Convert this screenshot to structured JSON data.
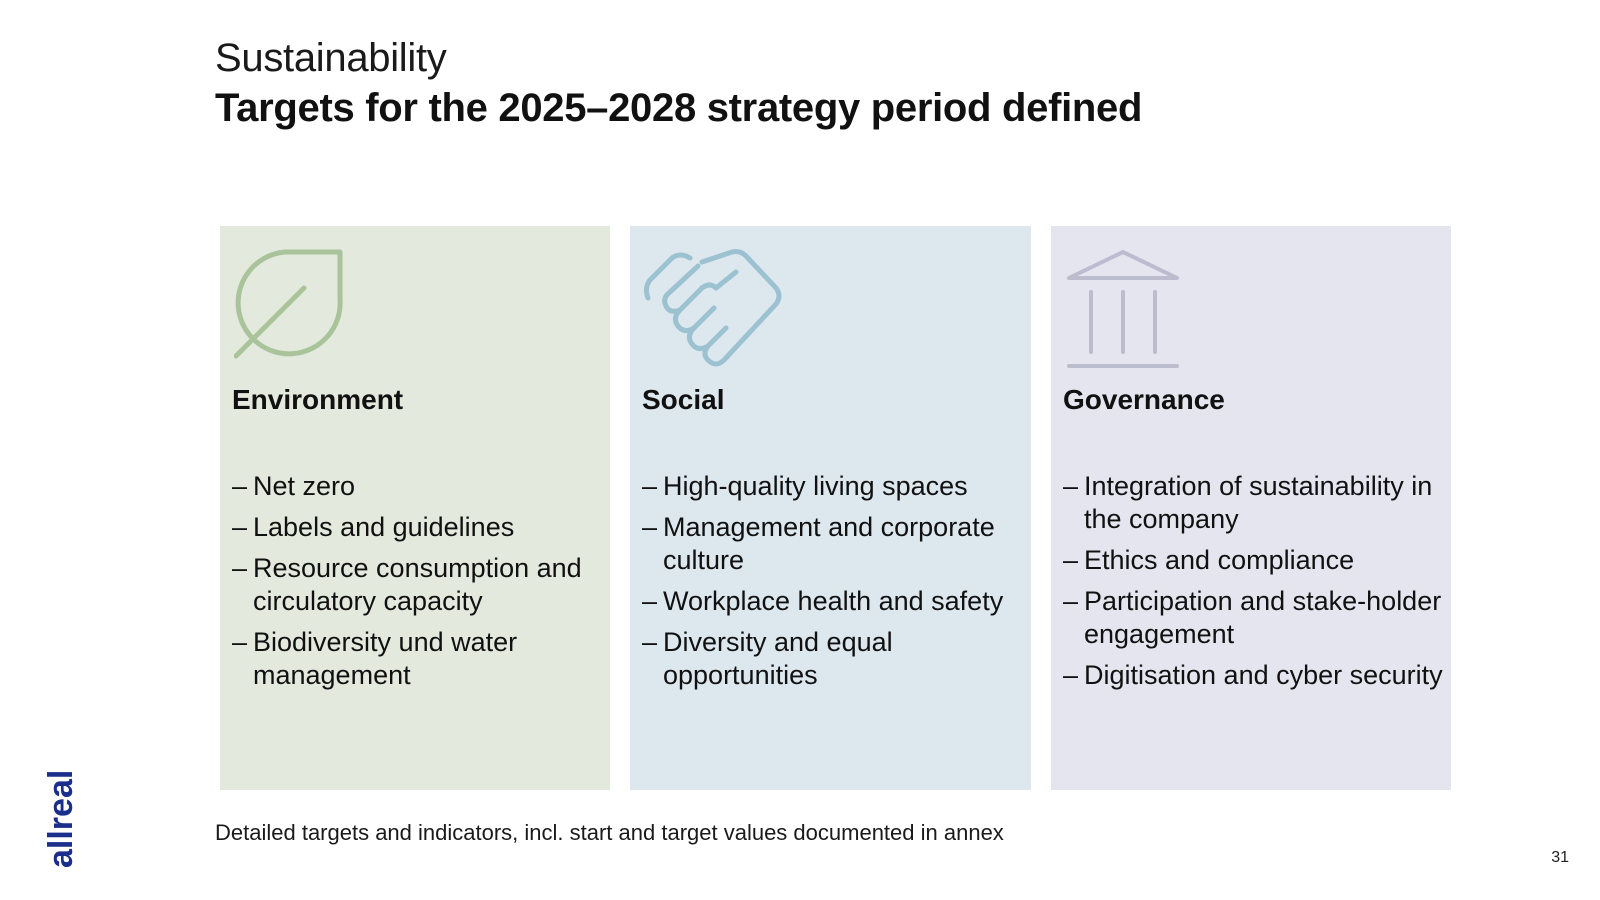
{
  "header": {
    "kicker": "Sustainability",
    "title": "Targets for the 2025–2028 strategy period defined"
  },
  "columns": [
    {
      "title": "Environment",
      "icon": "leaf-icon",
      "background": "#e4e9de",
      "icon_color": "#a9c49b",
      "items": [
        "Net zero",
        "Labels and guidelines",
        "Resource consumption and circulatory capacity",
        "Biodiversity und water management"
      ]
    },
    {
      "title": "Social",
      "icon": "handshake-icon",
      "background": "#dde7ee",
      "icon_color": "#9cc2d1",
      "items": [
        "High-quality living spaces",
        "Management and corporate culture",
        "Workplace health and safety",
        "Diversity and equal opportunities"
      ]
    },
    {
      "title": "Governance",
      "icon": "institution-icon",
      "background": "#e5e5ef",
      "icon_color": "#bcbccf",
      "items": [
        "Integration of sustainability in the company",
        "Ethics and compliance",
        "Participation and stake-holder engagement",
        "Digitisation and cyber security"
      ]
    }
  ],
  "list_marker": "–",
  "footnote": "Detailed targets and indicators, incl. start and target values documented in annex",
  "page_number": "31",
  "logo": {
    "text": "allreal",
    "color": "#1a2e8c"
  }
}
